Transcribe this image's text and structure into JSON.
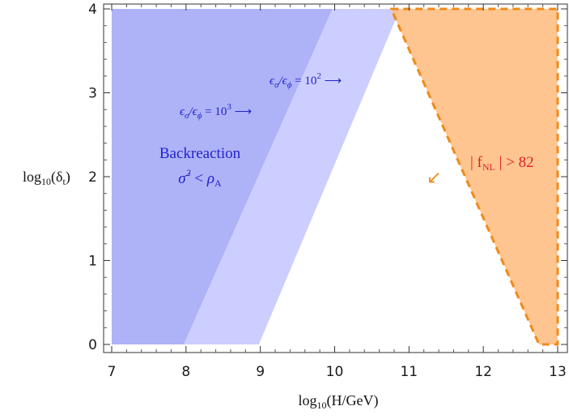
{
  "chart_data": {
    "type": "area",
    "xlabel": "log10(H/GeV)",
    "ylabel": "log10(δt)",
    "xlim": [
      7,
      13
    ],
    "ylim": [
      0,
      4
    ],
    "x_ticks": [
      "7",
      "8",
      "9",
      "10",
      "11",
      "12",
      "13"
    ],
    "y_ticks": [
      "0",
      "1",
      "2",
      "3",
      "4"
    ],
    "grid": false,
    "series": [
      {
        "name": "Backreaction σ̇² < ρA",
        "color": "#aeb2f7",
        "polygon": [
          [
            7,
            0
          ],
          [
            7.97,
            0
          ],
          [
            9.97,
            4
          ],
          [
            7,
            4
          ]
        ]
      },
      {
        "name": "εσ/εφ = 10²",
        "color": "#ccceff",
        "polygon": [
          [
            7.97,
            0
          ],
          [
            8.98,
            0
          ],
          [
            10.88,
            4
          ],
          [
            9.97,
            4
          ]
        ]
      },
      {
        "name": "|fNL| > 82",
        "color": "#ffbb7d",
        "border_color": "#f08a1a",
        "border_style": "dashed",
        "polygon": [
          [
            10.76,
            4
          ],
          [
            13,
            4
          ],
          [
            13,
            0
          ],
          [
            12.75,
            0
          ]
        ]
      }
    ],
    "annotations": {
      "backreaction_line1": "Backreaction",
      "backreaction_line2": "σ̇² < ρA",
      "ratio_high": "εσ/εφ = 10³ ⟶",
      "ratio_low": "εσ/εφ = 10² ⟶",
      "fnl_label": "| fNL | > 82",
      "fnl_arrow": "↙"
    },
    "colors": {
      "text_blue": "#2323cc",
      "text_red": "#e0202a",
      "arrow_orange": "#f08a1a"
    }
  }
}
